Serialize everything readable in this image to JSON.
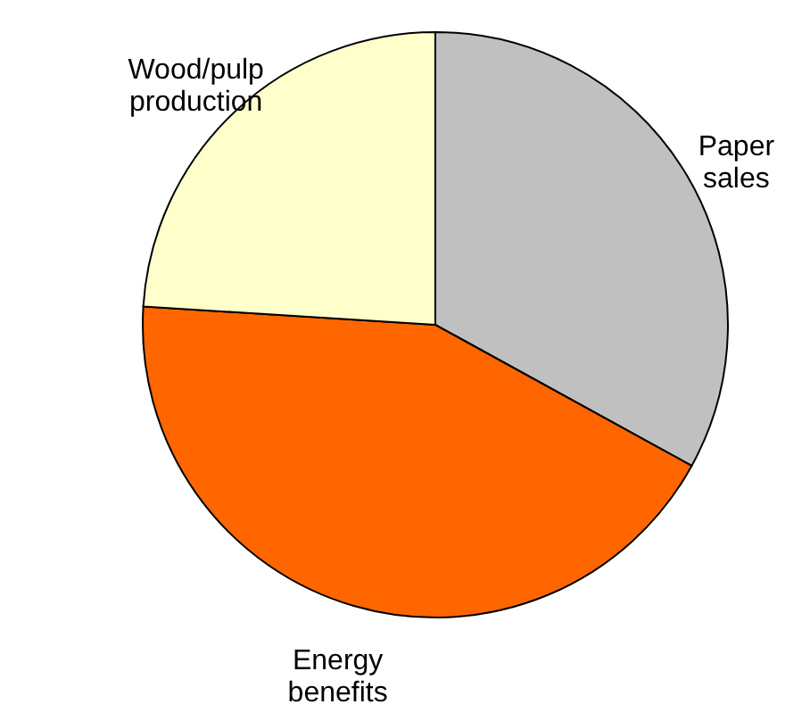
{
  "chart_data": {
    "type": "pie",
    "categories": [
      "Paper sales",
      "Energy benefits",
      "Wood/pulp production"
    ],
    "values": [
      33,
      43,
      24
    ],
    "colors": [
      "#c0c0c0",
      "#ff6600",
      "#ffffcc"
    ]
  }
}
